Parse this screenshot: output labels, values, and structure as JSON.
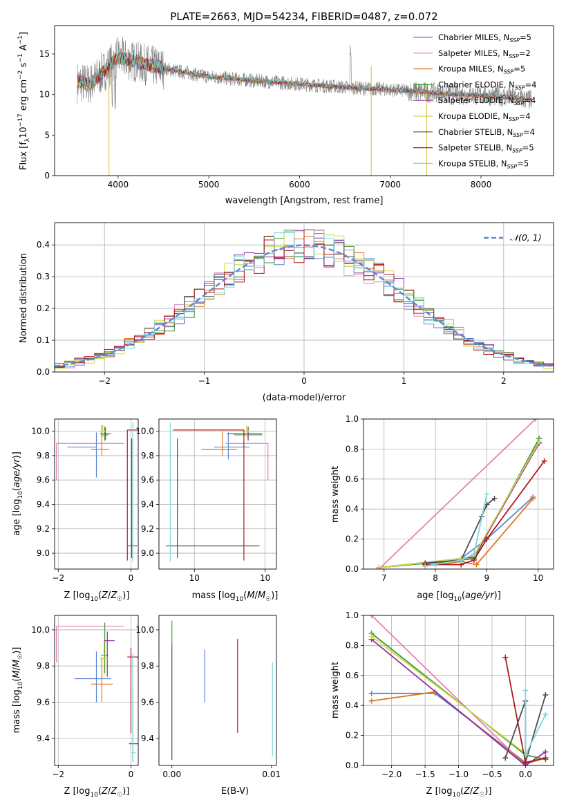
{
  "colors": {
    "Chabrier MILES": "#5b83d6",
    "Salpeter MILES": "#e87fb6",
    "Kroupa MILES": "#e0771f",
    "Chabrier ELODIE": "#3b9b3b",
    "Salpeter ELODIE": "#8a2ea6",
    "Kroupa ELODIE": "#d4db41",
    "Chabrier STELIB": "#4d4d4d",
    "Salpeter STELIB": "#b01818",
    "Kroupa STELIB": "#7fd6dd",
    "data": "#808080",
    "normal": "#5b8ad6"
  },
  "chart_data": [
    {
      "type": "line",
      "title": "PLATE=2663, MJD=54234, FIBERID=0487, z=0.072",
      "xlabel": "wavelength [Angstrom, rest frame]",
      "ylabel": "Flux [f_λ 10^-17 erg cm^-2 s^-1 A^-1]",
      "xlim": [
        3300,
        8800
      ],
      "ylim": [
        0,
        18.5
      ],
      "xticks": [
        4000,
        5000,
        6000,
        7000,
        8000
      ],
      "yticks": [
        0,
        5,
        10,
        15
      ],
      "legend_position": "top-right",
      "legend": [
        "Chabrier MILES, N_SSP=5",
        "Salpeter MILES, N_SSP=2",
        "Kroupa MILES, N_SSP=5",
        "Chabrier ELODIE, N_SSP=4",
        "Salpeter ELODIE, N_SSP=4",
        "Kroupa ELODIE, N_SSP=4",
        "Chabrier STELIB, N_SSP=4",
        "Salpeter STELIB, N_SSP=5",
        "Kroupa STELIB, N_SSP=5"
      ],
      "continuum": {
        "x": [
          3550,
          3700,
          3900,
          4000,
          4200,
          4500,
          5000,
          5500,
          6000,
          6500,
          7000,
          7400,
          7700,
          8000,
          8300,
          8560
        ],
        "y": [
          11.5,
          11.3,
          13.5,
          14.6,
          14.0,
          13.2,
          12.2,
          11.7,
          11.3,
          10.9,
          10.6,
          10.3,
          10.0,
          9.9,
          9.7,
          9.3
        ]
      }
    },
    {
      "type": "histogram",
      "xlabel": "(data-model)/error",
      "ylabel": "Normed distribution",
      "xlim": [
        -2.5,
        2.5
      ],
      "ylim": [
        0,
        0.47
      ],
      "xticks": [
        -2,
        -1,
        0,
        1,
        2
      ],
      "yticks": [
        0.0,
        0.1,
        0.2,
        0.3,
        0.4
      ],
      "legend_position": "top-right",
      "reference_curve": "N(0,1)",
      "reference_label": "𝒩(0, 1)",
      "grid": true
    },
    {
      "type": "scatter",
      "xlabel": "Z [log10(Z/Z☉)]",
      "ylabel": "age  [log10(age/yr)]",
      "xlim": [
        -2.1,
        0.2
      ],
      "ylim": [
        8.87,
        10.1
      ],
      "xticks": [
        -2,
        0
      ],
      "yticks": [
        9.0,
        9.2,
        9.4,
        9.6,
        9.8,
        10.0
      ],
      "grid": true,
      "points": [
        {
          "series": "Chabrier MILES",
          "x": -0.95,
          "y": 9.87,
          "xerr": [
            0.8,
            0.0
          ],
          "yerr": [
            0.25,
            0.12
          ]
        },
        {
          "series": "Salpeter MILES",
          "x": -2.05,
          "y": 9.9,
          "xerr": [
            0.0,
            1.85
          ],
          "yerr": [
            0.3,
            0.0
          ]
        },
        {
          "series": "Kroupa MILES",
          "x": -0.8,
          "y": 9.85,
          "xerr": [
            0.3,
            0.2
          ],
          "yerr": [
            0.05,
            0.2
          ]
        },
        {
          "series": "Chabrier ELODIE",
          "x": -0.72,
          "y": 9.97,
          "xerr": [
            0.1,
            0.1
          ],
          "yerr": [
            0.05,
            0.07
          ]
        },
        {
          "series": "Salpeter ELODIE",
          "x": -0.7,
          "y": 9.98,
          "xerr": [
            0.15,
            0.15
          ],
          "yerr": [
            0.05,
            0.05
          ]
        },
        {
          "series": "Kroupa ELODIE",
          "x": -0.77,
          "y": 10.0,
          "xerr": [
            0.1,
            0.1
          ],
          "yerr": [
            0.05,
            0.05
          ]
        },
        {
          "series": "Chabrier STELIB",
          "x": 0.02,
          "y": 9.06,
          "xerr": [
            0.1,
            0.15
          ],
          "yerr": [
            0.1,
            0.88
          ]
        },
        {
          "series": "Salpeter STELIB",
          "x": -0.1,
          "y": 10.01,
          "xerr": [
            0.0,
            0.3
          ],
          "yerr": [
            1.07,
            0.0
          ]
        },
        {
          "series": "Kroupa STELIB",
          "x": 0.05,
          "y": 9.92,
          "xerr": [
            0.0,
            0.0
          ],
          "yerr": [
            0.99,
            0.15
          ]
        }
      ]
    },
    {
      "type": "scatter",
      "xlabel": "mass [log10(M/M☉)]",
      "ylabel": "",
      "xlim": [
        9.25,
        10.08
      ],
      "ylim": [
        8.87,
        10.1
      ],
      "xticks": [
        9.5,
        10.0
      ],
      "yticks": [
        9.0,
        9.2,
        9.4,
        9.6,
        9.8,
        10.0
      ],
      "grid": true,
      "points": [
        {
          "series": "Chabrier MILES",
          "x": 9.74,
          "y": 9.87,
          "xerr": [
            0.1,
            0.15
          ],
          "yerr": [
            0.1,
            0.12
          ]
        },
        {
          "series": "Salpeter MILES",
          "x": 10.02,
          "y": 9.9,
          "xerr": [
            0.3,
            0.0
          ],
          "yerr": [
            0.3,
            0.0
          ]
        },
        {
          "series": "Kroupa MILES",
          "x": 9.7,
          "y": 9.85,
          "xerr": [
            0.15,
            0.1
          ],
          "yerr": [
            0.05,
            0.15
          ]
        },
        {
          "series": "Chabrier ELODIE",
          "x": 9.88,
          "y": 9.97,
          "xerr": [
            0.1,
            0.1
          ],
          "yerr": [
            0.05,
            0.07
          ]
        },
        {
          "series": "Salpeter ELODIE",
          "x": 9.88,
          "y": 9.98,
          "xerr": [
            0.15,
            0.1
          ],
          "yerr": [
            0.05,
            0.05
          ]
        },
        {
          "series": "Kroupa ELODIE",
          "x": 9.87,
          "y": 10.0,
          "xerr": [
            0.1,
            0.1
          ],
          "yerr": [
            0.05,
            0.05
          ]
        },
        {
          "series": "Chabrier STELIB",
          "x": 9.38,
          "y": 9.06,
          "xerr": [
            0.08,
            0.58
          ],
          "yerr": [
            0.1,
            0.88
          ]
        },
        {
          "series": "Salpeter STELIB",
          "x": 9.85,
          "y": 10.01,
          "xerr": [
            0.5,
            0.0
          ],
          "yerr": [
            1.07,
            0.0
          ]
        },
        {
          "series": "Kroupa STELIB",
          "x": 9.33,
          "y": 9.92,
          "xerr": [
            0.0,
            0.0
          ],
          "yerr": [
            0.99,
            0.15
          ]
        }
      ]
    },
    {
      "type": "line",
      "xlabel": "age  [log10(age/yr)]",
      "ylabel": "mass weight",
      "xlim": [
        6.6,
        10.3
      ],
      "ylim": [
        0,
        1
      ],
      "xticks": [
        7,
        8,
        9,
        10
      ],
      "yticks": [
        0.0,
        0.2,
        0.4,
        0.6,
        0.8,
        1.0
      ],
      "grid": true,
      "series": [
        {
          "name": "Chabrier MILES",
          "x": [
            7.8,
            8.5,
            9.0,
            9.9
          ],
          "y": [
            0.02,
            0.07,
            0.2,
            0.48
          ]
        },
        {
          "name": "Salpeter MILES",
          "x": [
            6.9,
            9.95
          ],
          "y": [
            0.0,
            1.0
          ]
        },
        {
          "name": "Kroupa MILES",
          "x": [
            7.8,
            8.5,
            8.8,
            9.9
          ],
          "y": [
            0.02,
            0.05,
            0.03,
            0.47
          ]
        },
        {
          "name": "Chabrier ELODIE",
          "x": [
            6.9,
            8.5,
            8.75,
            10.02
          ],
          "y": [
            0.01,
            0.06,
            0.07,
            0.87
          ]
        },
        {
          "name": "Salpeter ELODIE",
          "x": [
            6.9,
            8.5,
            8.75,
            10.02
          ],
          "y": [
            0.01,
            0.07,
            0.08,
            0.84
          ]
        },
        {
          "name": "Kroupa ELODIE",
          "x": [
            6.9,
            8.5,
            8.75,
            10.02
          ],
          "y": [
            0.01,
            0.07,
            0.09,
            0.85
          ]
        },
        {
          "name": "Chabrier STELIB",
          "x": [
            7.8,
            8.5,
            8.9,
            9.0,
            9.15
          ],
          "y": [
            0.04,
            0.06,
            0.35,
            0.43,
            0.47
          ]
        },
        {
          "name": "Salpeter STELIB",
          "x": [
            7.8,
            8.5,
            8.75,
            9.0,
            10.12
          ],
          "y": [
            0.03,
            0.03,
            0.06,
            0.2,
            0.72
          ]
        },
        {
          "name": "Kroupa STELIB",
          "x": [
            7.8,
            8.5,
            8.75,
            9.0
          ],
          "y": [
            0.02,
            0.06,
            0.1,
            0.5
          ]
        }
      ]
    },
    {
      "type": "scatter",
      "xlabel": "Z [log10(Z/Z☉)]",
      "ylabel": "mass [log10(M/M☉)]",
      "xlim": [
        -2.1,
        0.2
      ],
      "ylim": [
        9.25,
        10.08
      ],
      "xticks": [
        -2,
        0
      ],
      "yticks": [
        9.4,
        9.6,
        9.8,
        10.0
      ],
      "grid": true,
      "points": [
        {
          "series": "Chabrier MILES",
          "x": -0.95,
          "y": 9.73,
          "xerr": [
            0.6,
            0.4
          ],
          "yerr": [
            0.13,
            0.15
          ]
        },
        {
          "series": "Salpeter MILES",
          "x": -2.05,
          "y": 10.02,
          "xerr": [
            0.0,
            1.85
          ],
          "yerr": [
            0.2,
            0.0
          ]
        },
        {
          "series": "Kroupa MILES",
          "x": -0.8,
          "y": 9.7,
          "xerr": [
            0.3,
            0.3
          ],
          "yerr": [
            0.1,
            0.15
          ]
        },
        {
          "series": "Chabrier ELODIE",
          "x": -0.72,
          "y": 9.86,
          "xerr": [
            0.1,
            0.1
          ],
          "yerr": [
            0.1,
            0.18
          ]
        },
        {
          "series": "Salpeter ELODIE",
          "x": -0.65,
          "y": 9.94,
          "xerr": [
            0.1,
            0.2
          ],
          "yerr": [
            0.2,
            0.05
          ]
        },
        {
          "series": "Kroupa ELODIE",
          "x": -0.74,
          "y": 9.84,
          "xerr": [
            0.1,
            0.1
          ],
          "yerr": [
            0.1,
            0.1
          ]
        },
        {
          "series": "Chabrier STELIB",
          "x": 0.05,
          "y": 9.37,
          "xerr": [
            0.1,
            0.15
          ],
          "yerr": [
            0.1,
            0.3
          ]
        },
        {
          "series": "Salpeter STELIB",
          "x": 0.0,
          "y": 9.85,
          "xerr": [
            0.1,
            0.2
          ],
          "yerr": [
            0.42,
            0.05
          ]
        },
        {
          "series": "Kroupa STELIB",
          "x": 0.05,
          "y": 9.32,
          "xerr": [
            0.05,
            0.08
          ],
          "yerr": [
            0.05,
            0.55
          ]
        }
      ]
    },
    {
      "type": "scatter",
      "xlabel": "E(B-V)",
      "ylabel": "",
      "xlim": [
        -0.0013,
        0.0105
      ],
      "ylim": [
        9.25,
        10.08
      ],
      "xticks": [
        0.0,
        0.01
      ],
      "xticklabels": [
        "0.00",
        "0.01"
      ],
      "yticks": [
        9.4,
        9.6,
        9.8,
        10.0
      ],
      "grid": false,
      "segments": [
        {
          "series": "Chabrier MILES",
          "x": 0.0033,
          "y1": 9.6,
          "y2": 9.89
        },
        {
          "series": "Salpeter STELIB",
          "x": 0.0066,
          "y1": 9.43,
          "y2": 9.95
        },
        {
          "series": "Chabrier STELIB",
          "x": 0.0,
          "y1": 9.28,
          "y2": 9.92
        },
        {
          "series": "Chabrier ELODIE",
          "x": 0.0,
          "y1": 9.9,
          "y2": 10.05
        },
        {
          "series": "Kroupa STELIB",
          "x": 0.0101,
          "y1": 9.3,
          "y2": 9.82
        }
      ]
    },
    {
      "type": "line",
      "xlabel": "Z [log10(Z/Z☉)]",
      "ylabel": "mass weight",
      "xlim": [
        -2.42,
        0.42
      ],
      "ylim": [
        0,
        1
      ],
      "xticks": [
        -2.0,
        -1.5,
        -1.0,
        -0.5,
        0.0
      ],
      "yticks": [
        0.0,
        0.2,
        0.4,
        0.6,
        0.8,
        1.0
      ],
      "grid": true,
      "series": [
        {
          "name": "Chabrier MILES",
          "x": [
            -2.3,
            -1.35,
            0.0
          ],
          "y": [
            0.48,
            0.48,
            0.02
          ]
        },
        {
          "name": "Salpeter MILES",
          "x": [
            -2.3,
            0.0
          ],
          "y": [
            1.0,
            0.0
          ]
        },
        {
          "name": "Kroupa MILES",
          "x": [
            -2.3,
            -1.35,
            0.0,
            0.3
          ],
          "y": [
            0.43,
            0.49,
            0.01,
            0.05
          ]
        },
        {
          "name": "Chabrier ELODIE",
          "x": [
            -2.3,
            0.0,
            0.3
          ],
          "y": [
            0.88,
            0.07,
            0.04
          ]
        },
        {
          "name": "Salpeter ELODIE",
          "x": [
            -2.3,
            0.0,
            0.3
          ],
          "y": [
            0.84,
            0.0,
            0.09
          ]
        },
        {
          "name": "Kroupa ELODIE",
          "x": [
            -2.3,
            0.0
          ],
          "y": [
            0.86,
            0.08
          ]
        },
        {
          "name": "Chabrier STELIB",
          "x": [
            -0.3,
            0.0,
            0.0,
            0.3
          ],
          "y": [
            0.05,
            0.43,
            0.02,
            0.47
          ]
        },
        {
          "name": "Salpeter STELIB",
          "x": [
            -0.3,
            0.0,
            0.3
          ],
          "y": [
            0.72,
            0.02,
            0.05
          ]
        },
        {
          "name": "Kroupa STELIB",
          "x": [
            0.0,
            0.0,
            0.3
          ],
          "y": [
            0.5,
            0.07,
            0.34
          ]
        }
      ]
    }
  ]
}
